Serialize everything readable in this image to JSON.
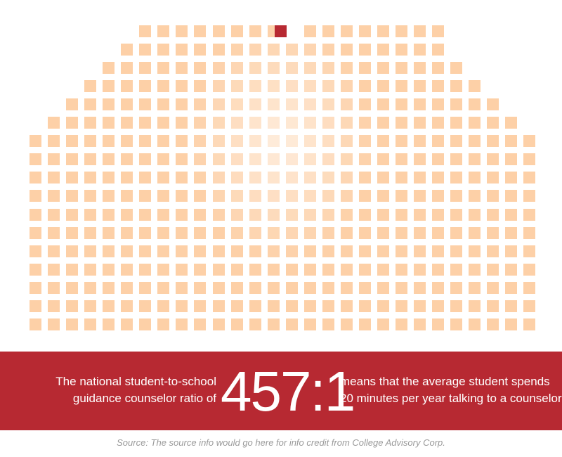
{
  "chart_data": {
    "type": "waffle",
    "highlight_count": 1,
    "colors": {
      "square": "#fdd0a7",
      "highlight": "#b72932",
      "banner": "#b72932",
      "source_text": "#9a9a9a"
    }
  },
  "banner": {
    "left_line1": "The national student-to-school",
    "left_line2": "guidance counselor ratio of",
    "ratio": "457:1",
    "right_line1": "means that the average student spends",
    "right_line2": "20 minutes per year talking to a counselor."
  },
  "source": "Source:  The source info would go here for info credit from College Advisory Corp."
}
